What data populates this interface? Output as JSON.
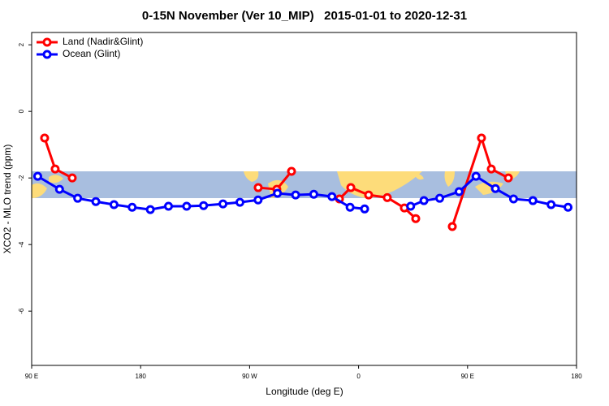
{
  "chart_data": {
    "type": "line",
    "title": "0-15N November (Ver 10_MIP)   2015-01-01 to 2020-12-31",
    "xlabel": "Longitude (deg E)",
    "ylabel": "XCO2 - MLO trend (ppm)",
    "xlim": [
      90,
      540
    ],
    "ylim": [
      -7.63,
      2.37
    ],
    "xticks": [
      {
        "value": 90,
        "label": "90 E"
      },
      180,
      {
        "value": 270,
        "label": "90 W"
      },
      {
        "value": 360,
        "label": "0"
      },
      {
        "value": 450,
        "label": "90 E"
      },
      {
        "value": 540,
        "label": "180"
      }
    ],
    "yticks": [
      2,
      0,
      -2,
      -4,
      -6
    ],
    "legend": "top-left",
    "series": [
      {
        "name": "Land (Nadir&Glint)",
        "color": "#ff0000",
        "x": [
          100.7,
          109.4,
          123.5,
          null,
          277.1,
          292.5,
          304.6,
          null,
          344.2,
          353.6,
          368.3,
          383.7,
          397.8,
          407.2,
          null,
          437.4,
          461.5,
          469.6,
          483.7
        ],
        "values": [
          -0.8,
          -1.73,
          -2.0,
          null,
          -2.29,
          -2.34,
          -1.8,
          null,
          -2.63,
          -2.29,
          -2.51,
          -2.59,
          -2.9,
          -3.22,
          null,
          -3.46,
          -0.8,
          -1.73,
          -2.0
        ]
      },
      {
        "name": "Ocean (Glint)",
        "color": "#0000ff",
        "x": [
          95,
          113,
          128,
          143,
          158,
          173,
          188,
          203,
          218,
          232,
          248,
          262,
          277,
          293,
          308,
          323,
          338,
          353,
          365,
          null,
          403,
          414,
          427,
          443,
          457,
          473,
          488,
          504,
          519,
          533
        ],
        "values": [
          -1.95,
          -2.34,
          -2.61,
          -2.71,
          -2.8,
          -2.88,
          -2.95,
          -2.85,
          -2.85,
          -2.83,
          -2.78,
          -2.73,
          -2.66,
          -2.46,
          -2.51,
          -2.49,
          -2.56,
          -2.88,
          -2.93,
          null,
          -2.85,
          -2.68,
          -2.61,
          -2.41,
          -1.95,
          -2.32,
          -2.63,
          -2.68,
          -2.8,
          -2.88
        ]
      }
    ]
  }
}
